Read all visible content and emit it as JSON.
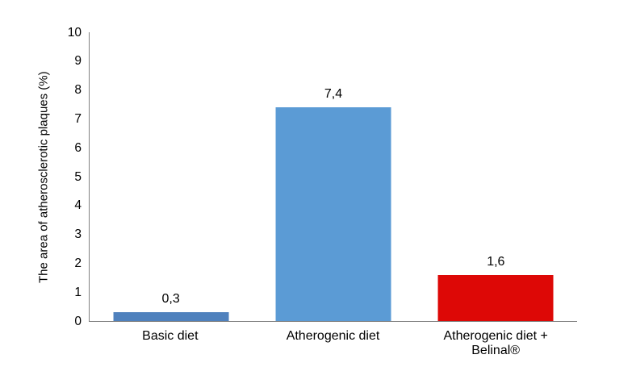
{
  "chart_data": {
    "type": "bar",
    "categories": [
      "Basic diet",
      "Atherogenic diet",
      "Atherogenic diet + Belinal®"
    ],
    "values": [
      0.3,
      7.4,
      1.6
    ],
    "value_labels": [
      "0,3",
      "7,4",
      "1,6"
    ],
    "bar_colors": [
      "#4F81BD",
      "#5B9BD5",
      "#DD0806"
    ],
    "title": "",
    "xlabel": "",
    "ylabel": "The area of atherosclerotic plaques (%)",
    "ylim": [
      0,
      10
    ],
    "ytick_step": 1,
    "ytick_labels": [
      "0",
      "1",
      "2",
      "3",
      "4",
      "5",
      "6",
      "7",
      "8",
      "9",
      "10"
    ],
    "grid": false,
    "legend": false,
    "axis_color": "#808080",
    "text_color": "#000000"
  }
}
